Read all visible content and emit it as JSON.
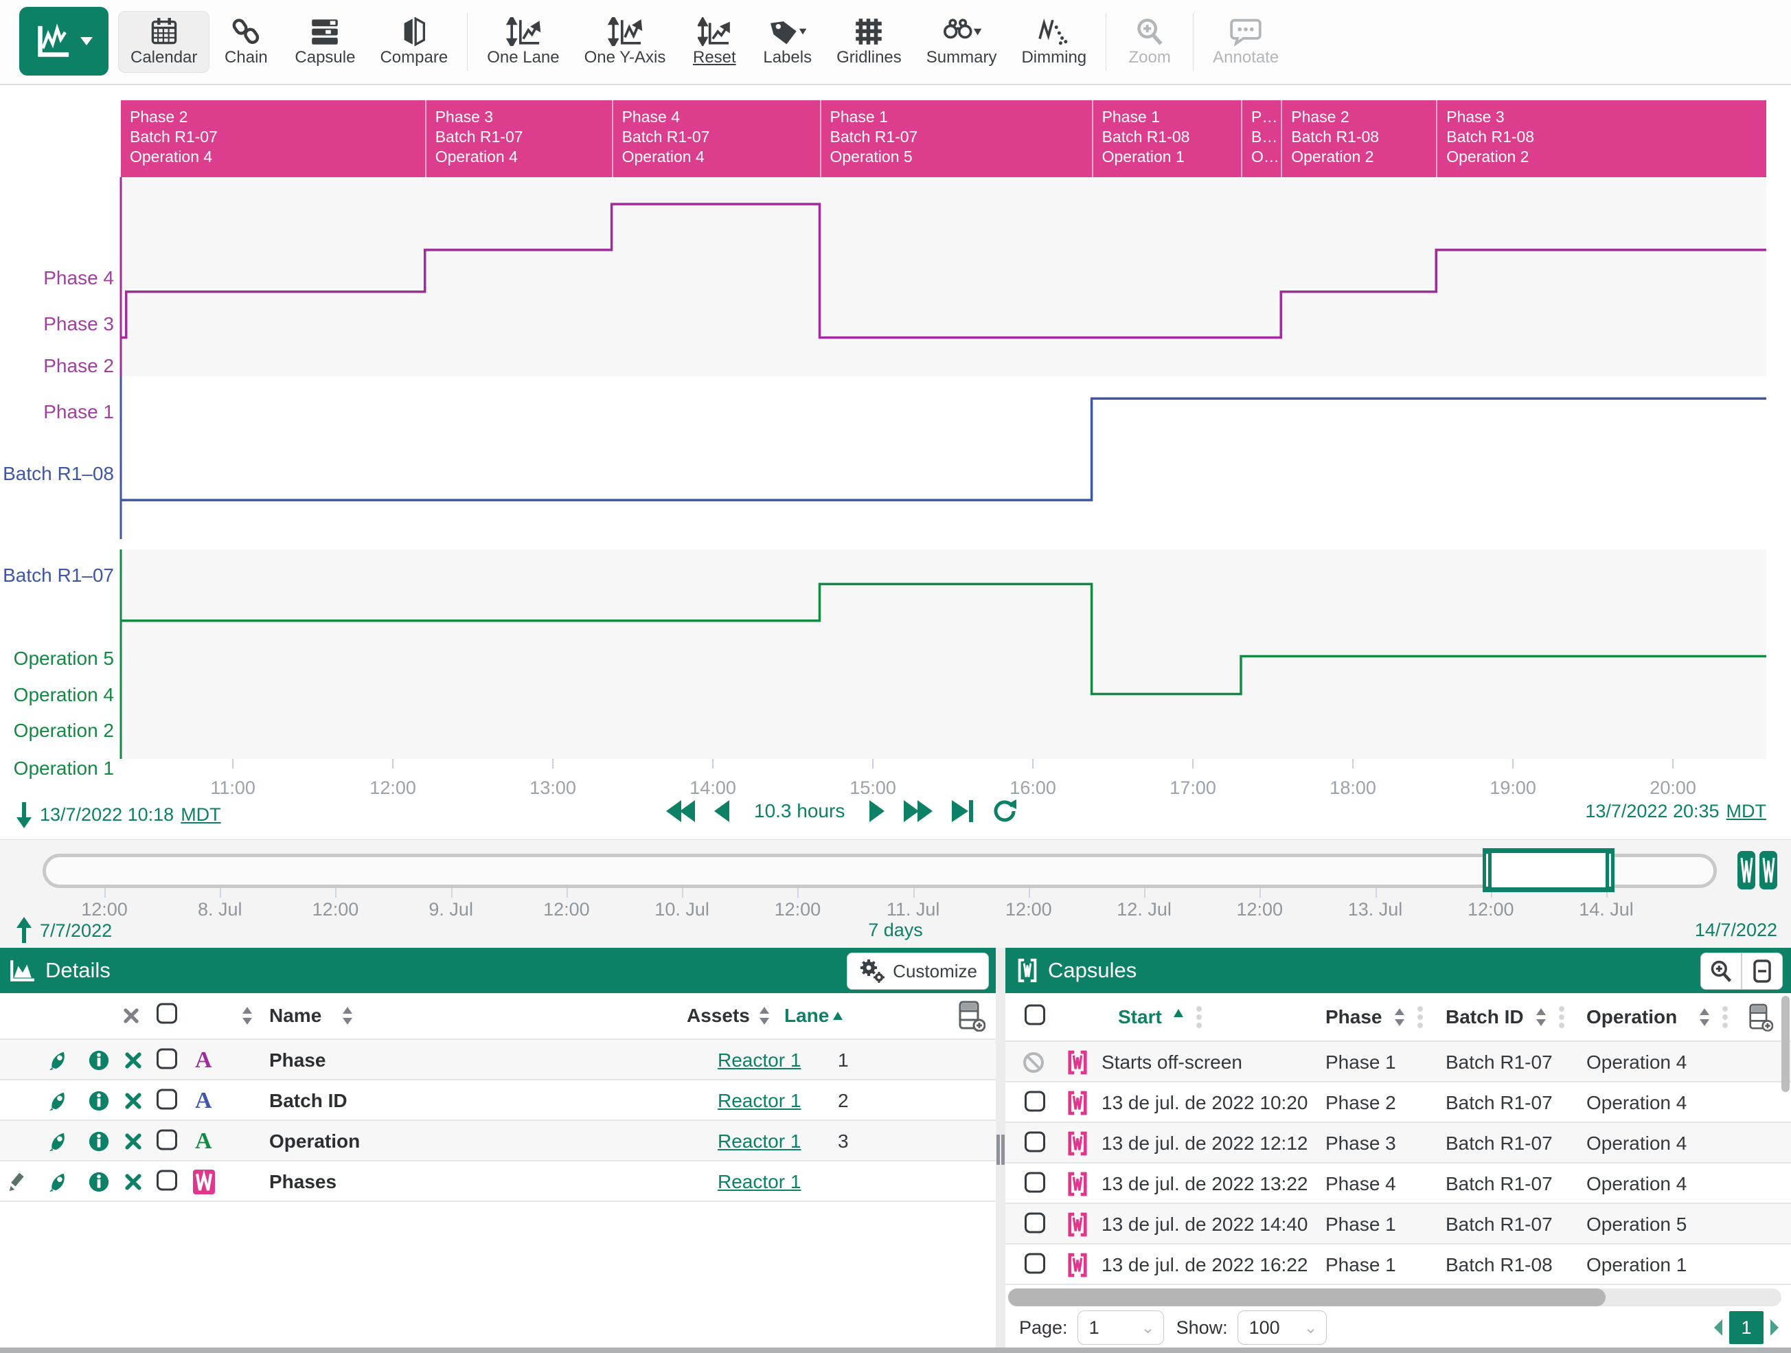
{
  "colors": {
    "accent": "#0c8166",
    "pink": "#dc3d8c",
    "purple": "#a02c9c",
    "purple_label": "#a23f9e",
    "blue": "#3f55a5",
    "green": "#128a43"
  },
  "toolbar": {
    "items": [
      {
        "label": "Calendar",
        "icon": "calendar-icon",
        "state": "active"
      },
      {
        "label": "Chain",
        "icon": "chain-icon"
      },
      {
        "label": "Capsule",
        "icon": "capsule-time-icon"
      },
      {
        "label": "Compare",
        "icon": "compare-icon"
      },
      {
        "label": "One Lane",
        "icon": "one-lane-icon"
      },
      {
        "label": "One Y-Axis",
        "icon": "one-y-axis-icon"
      },
      {
        "label": "Reset",
        "icon": "reset-icon"
      },
      {
        "label": "Labels",
        "icon": "labels-icon"
      },
      {
        "label": "Gridlines",
        "icon": "gridlines-icon"
      },
      {
        "label": "Summary",
        "icon": "summary-icon"
      },
      {
        "label": "Dimming",
        "icon": "dimming-icon"
      },
      {
        "label": "Zoom",
        "icon": "zoom-icon",
        "state": "disabled"
      },
      {
        "label": "Annotate",
        "icon": "annotate-icon",
        "state": "disabled"
      }
    ]
  },
  "chart_data": {
    "type": "step-lanes",
    "x_unit": "time of day, 13 Jul 2022",
    "x_range": [
      10.3,
      20.5833
    ],
    "x_ticks": [
      {
        "t": 11,
        "label": "11:00"
      },
      {
        "t": 12,
        "label": "12:00"
      },
      {
        "t": 13,
        "label": "13:00"
      },
      {
        "t": 14,
        "label": "14:00"
      },
      {
        "t": 15,
        "label": "15:00"
      },
      {
        "t": 16,
        "label": "16:00"
      },
      {
        "t": 17,
        "label": "17:00"
      },
      {
        "t": 18,
        "label": "18:00"
      },
      {
        "t": 19,
        "label": "19:00"
      },
      {
        "t": 20,
        "label": "20:00"
      }
    ],
    "capsule_header": {
      "color": "#dc3d8c",
      "segments": [
        {
          "start": 10.3,
          "end": 12.2,
          "lines": [
            "Phase 2",
            "Batch R1-07",
            "Operation 4"
          ]
        },
        {
          "start": 12.2,
          "end": 13.367,
          "lines": [
            "Phase 3",
            "Batch R1-07",
            "Operation 4"
          ]
        },
        {
          "start": 13.367,
          "end": 14.667,
          "lines": [
            "Phase 4",
            "Batch R1-07",
            "Operation 4"
          ]
        },
        {
          "start": 14.667,
          "end": 16.367,
          "lines": [
            "Phase 1",
            "Batch R1-07",
            "Operation 5"
          ]
        },
        {
          "start": 16.367,
          "end": 17.3,
          "lines": [
            "Phase 1",
            "Batch R1-08",
            "Operation 1"
          ]
        },
        {
          "start": 17.3,
          "end": 17.55,
          "lines": [
            "P…",
            "B…",
            "O…"
          ]
        },
        {
          "start": 17.55,
          "end": 18.52,
          "lines": [
            "Phase 2",
            "Batch R1-08",
            "Operation 2"
          ]
        },
        {
          "start": 18.52,
          "end": 20.5833,
          "lines": [
            "Phase 3",
            "Batch R1-08",
            "Operation 2"
          ]
        }
      ]
    },
    "lanes": [
      {
        "id": "phase",
        "line_color": "#a02c9c",
        "label_color": "#a23f9e",
        "categories": [
          "Phase 4",
          "Phase 3",
          "Phase 2",
          "Phase 1"
        ],
        "series": [
          {
            "t": 10.3,
            "v": "Phase 1"
          },
          {
            "t": 10.333,
            "v": "Phase 2"
          },
          {
            "t": 12.2,
            "v": "Phase 3"
          },
          {
            "t": 13.367,
            "v": "Phase 4"
          },
          {
            "t": 14.667,
            "v": "Phase 1"
          },
          {
            "t": 17.55,
            "v": "Phase 2"
          },
          {
            "t": 18.52,
            "v": "Phase 3"
          }
        ]
      },
      {
        "id": "batch",
        "line_color": "#3f55a5",
        "label_color": "#3f55a5",
        "categories": [
          "Batch R1–08",
          "Batch R1–07"
        ],
        "series": [
          {
            "t": 10.3,
            "v": "Batch R1–07"
          },
          {
            "t": 16.367,
            "v": "Batch R1–08"
          }
        ]
      },
      {
        "id": "operation",
        "line_color": "#128a43",
        "label_color": "#128a43",
        "categories": [
          "Operation 5",
          "Operation 4",
          "Operation 2",
          "Operation 1"
        ],
        "series": [
          {
            "t": 10.3,
            "v": "Operation 4"
          },
          {
            "t": 14.667,
            "v": "Operation 5"
          },
          {
            "t": 16.367,
            "v": "Operation 1"
          },
          {
            "t": 17.3,
            "v": "Operation 2"
          }
        ]
      }
    ],
    "range_labels": {
      "start": "13/7/2022 10:18",
      "start_tz": "MDT",
      "duration": "10.3 hours",
      "end": "13/7/2022 20:35",
      "end_tz": "MDT"
    }
  },
  "timeline": {
    "ticks": [
      "12:00",
      "8. Jul",
      "12:00",
      "9. Jul",
      "12:00",
      "10. Jul",
      "12:00",
      "11. Jul",
      "12:00",
      "12. Jul",
      "12:00",
      "13. Jul",
      "12:00",
      "14. Jul"
    ],
    "selection": {
      "from_tick": 12,
      "to_tick": 13
    },
    "start": "7/7/2022",
    "duration": "7 days",
    "end": "14/7/2022"
  },
  "details": {
    "title": "Details",
    "customize_label": "Customize",
    "columns": {
      "name": "Name",
      "assets": "Assets",
      "lane": "Lane"
    },
    "rows": [
      {
        "name": "Phase",
        "asset": "Reactor 1",
        "lane": "1",
        "item_type": "string-signal",
        "color": "#a02c9c"
      },
      {
        "name": "Batch ID",
        "asset": "Reactor 1",
        "lane": "2",
        "item_type": "string-signal",
        "color": "#3f55a5"
      },
      {
        "name": "Operation",
        "asset": "Reactor 1",
        "lane": "3",
        "item_type": "string-signal",
        "color": "#128a43"
      },
      {
        "name": "Phases",
        "asset": "Reactor 1",
        "lane": "",
        "item_type": "condition",
        "color": "#dc3d8c"
      }
    ]
  },
  "capsules": {
    "title": "Capsules",
    "columns": {
      "start": "Start",
      "phase": "Phase",
      "batch": "Batch ID",
      "operation": "Operation"
    },
    "rows": [
      {
        "start": "Starts off-screen",
        "phase": "Phase 1",
        "batch": "Batch R1-07",
        "operation": "Operation 4",
        "excluded": true
      },
      {
        "start": "13 de jul. de 2022 10:20",
        "phase": "Phase 2",
        "batch": "Batch R1-07",
        "operation": "Operation 4"
      },
      {
        "start": "13 de jul. de 2022 12:12",
        "phase": "Phase 3",
        "batch": "Batch R1-07",
        "operation": "Operation 4"
      },
      {
        "start": "13 de jul. de 2022 13:22",
        "phase": "Phase 4",
        "batch": "Batch R1-07",
        "operation": "Operation 4"
      },
      {
        "start": "13 de jul. de 2022 14:40",
        "phase": "Phase 1",
        "batch": "Batch R1-07",
        "operation": "Operation 5"
      },
      {
        "start": "13 de jul. de 2022 16:22",
        "phase": "Phase 1",
        "batch": "Batch R1-08",
        "operation": "Operation 1"
      }
    ],
    "pagination": {
      "page_label": "Page:",
      "page": "1",
      "show_label": "Show:",
      "show": "100",
      "current_page": "1"
    }
  }
}
